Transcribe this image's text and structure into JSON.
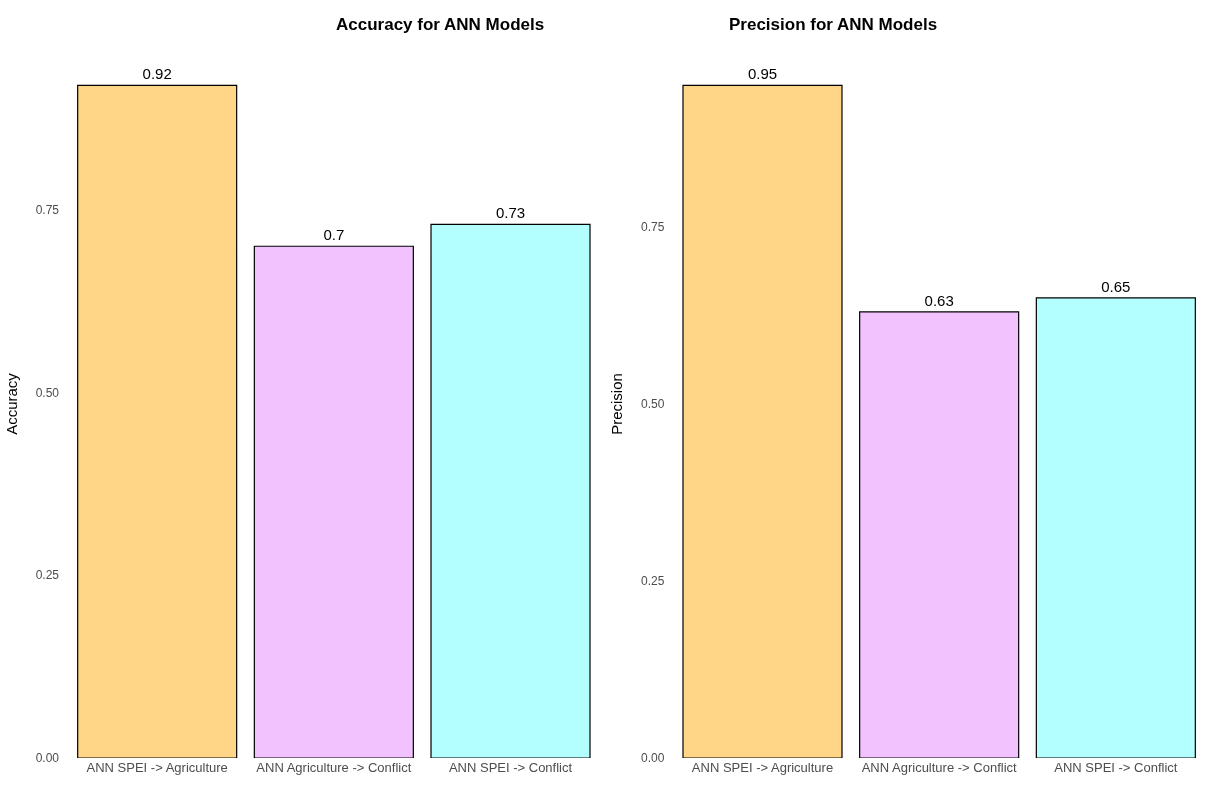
{
  "chart_data": [
    {
      "type": "bar",
      "title": "Accuracy for ANN Models",
      "ylabel": "Accuracy",
      "categories": [
        "ANN SPEI -> Agriculture",
        "ANN Agriculture -> Conflict",
        "ANN SPEI -> Conflict"
      ],
      "values": [
        0.92,
        0.7,
        0.73
      ],
      "colors": [
        "#ffd588",
        "#f2c2ff",
        "#b3ffff"
      ],
      "yticks": [
        "0.00",
        "0.25",
        "0.50",
        "0.75"
      ],
      "data_labels": true
    },
    {
      "type": "bar",
      "title": "Precision for ANN Models",
      "ylabel": "Precision",
      "categories": [
        "ANN SPEI -> Agriculture",
        "ANN Agriculture -> Conflict",
        "ANN SPEI -> Conflict"
      ],
      "values": [
        0.95,
        0.63,
        0.65
      ],
      "colors": [
        "#ffd588",
        "#f2c2ff",
        "#b3ffff"
      ],
      "yticks": [
        "0.00",
        "0.25",
        "0.50",
        "0.75"
      ],
      "data_labels": true
    }
  ]
}
